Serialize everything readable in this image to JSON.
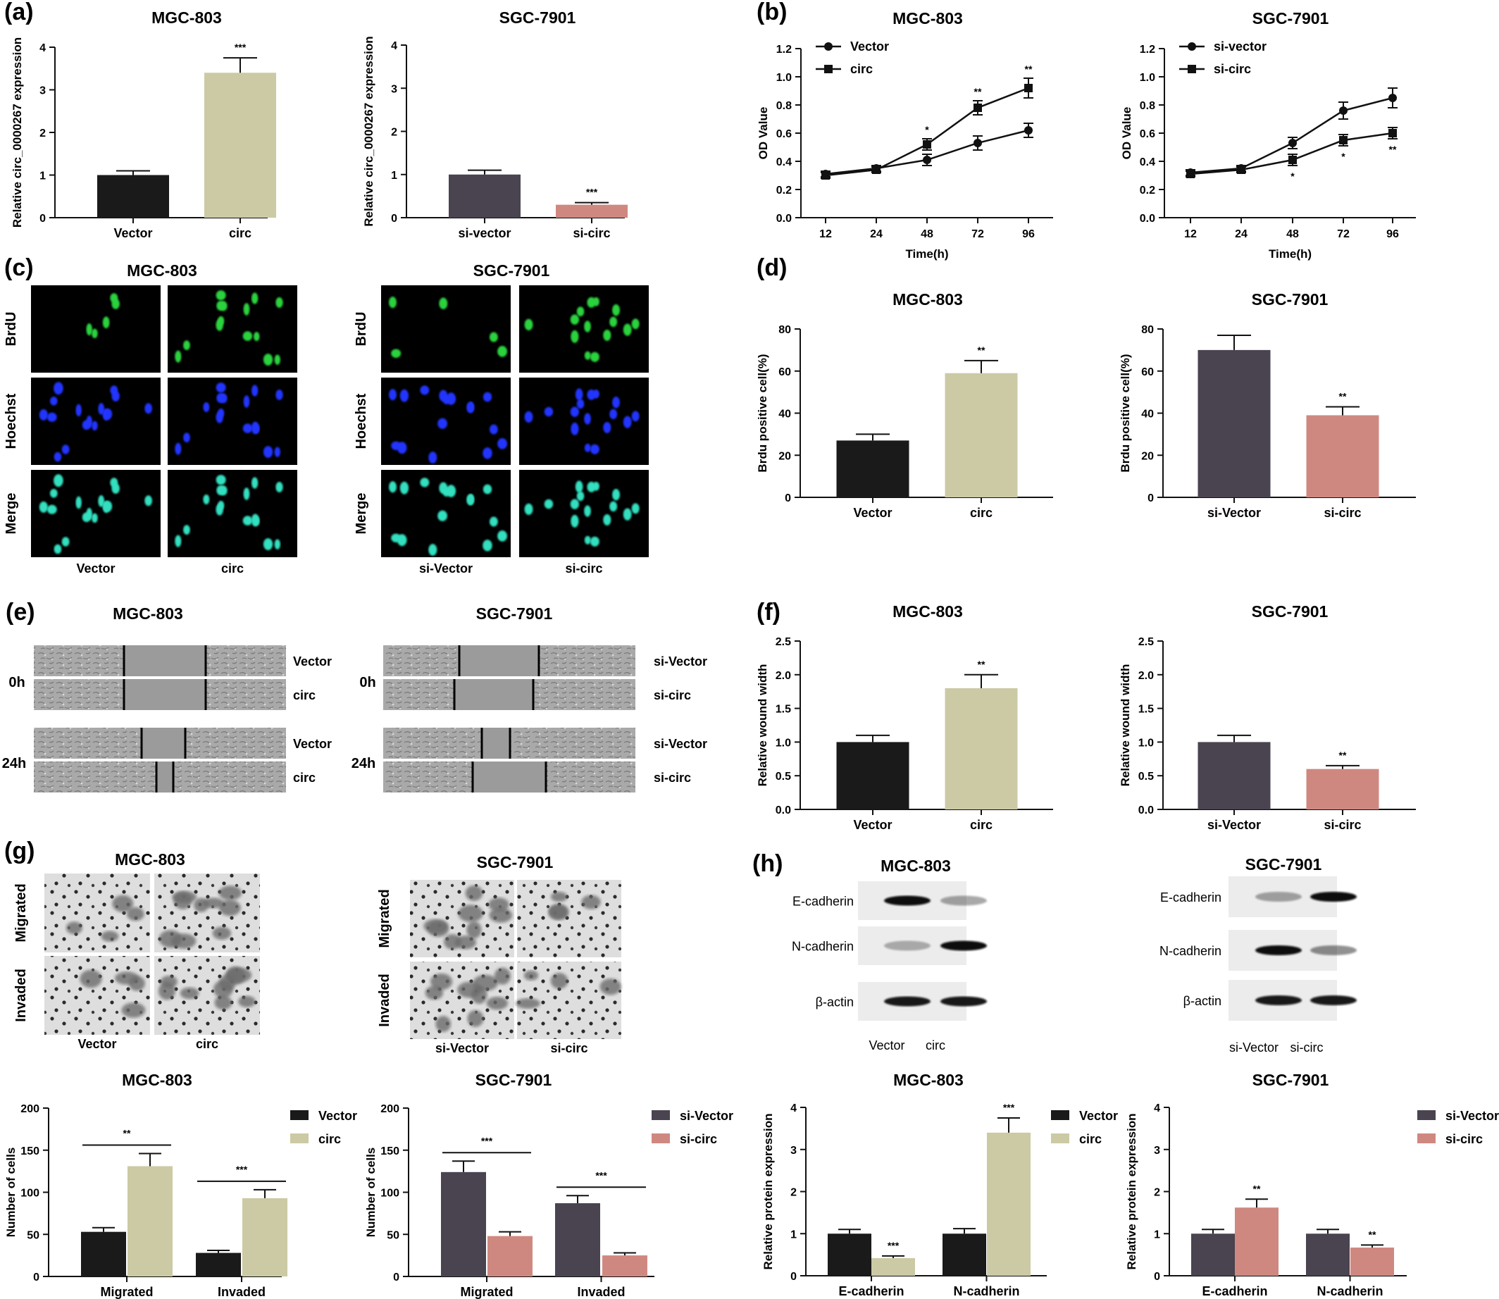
{
  "colors": {
    "black_bar": "#1a1a1a",
    "beige_bar": "#cbcaa5",
    "purple_bar": "#4a4350",
    "pink_bar": "#cf8880",
    "axis": "#111111"
  },
  "panels": {
    "a": "(a)",
    "b": "(b)",
    "c": "(c)",
    "d": "(d)",
    "e": "(e)",
    "f": "(f)",
    "g": "(g)",
    "h": "(h)"
  },
  "images": {
    "c_left_title": "MGC-803",
    "c_right_title": "SGC-7901",
    "c_rows": [
      "BrdU",
      "Hoechst",
      "Merge"
    ],
    "c_left_cols": [
      "Vector",
      "circ"
    ],
    "c_right_cols": [
      "si-Vector",
      "si-circ"
    ],
    "e_left_title": "MGC-803",
    "e_right_title": "SGC-7901",
    "e_times": [
      "0h",
      "24h"
    ],
    "e_left_labels": [
      "Vector",
      "circ",
      "Vector",
      "circ"
    ],
    "e_right_labels": [
      "si-Vector",
      "si-circ",
      "si-Vector",
      "si-circ"
    ],
    "g_left_title": "MGC-803",
    "g_right_title": "SGC-7901",
    "g_rows": [
      "Migrated",
      "Invaded"
    ],
    "g_left_cols": [
      "Vector",
      "circ"
    ],
    "g_right_cols": [
      "si-Vector",
      "si-circ"
    ],
    "h_left_title": "MGC-803",
    "h_right_title": "SGC-7901",
    "h_bands": [
      "E-cadherin",
      "N-cadherin",
      "β-actin"
    ],
    "h_left_cols": [
      "Vector",
      "circ"
    ],
    "h_right_cols": [
      "si-Vector",
      "si-circ"
    ]
  },
  "chart_data": [
    {
      "id": "a1",
      "type": "bar",
      "title": "MGC-803",
      "ylabel": "Relative circ_0000267  expression",
      "categories": [
        "Vector",
        "circ"
      ],
      "values": [
        1.0,
        3.4
      ],
      "errors": [
        0.1,
        0.35
      ],
      "colors": [
        "#1a1a1a",
        "#cbcaa5"
      ],
      "sig": [
        "",
        "***"
      ],
      "ylim": [
        0,
        4
      ],
      "yticks": [
        "0",
        "1",
        "2",
        "3",
        "4"
      ],
      "ytick_values": [
        0,
        1,
        2,
        3,
        4
      ]
    },
    {
      "id": "a2",
      "type": "bar",
      "title": "SGC-7901",
      "ylabel": "Relative circ_0000267  expression",
      "categories": [
        "si-vector",
        "si-circ"
      ],
      "values": [
        1.0,
        0.3
      ],
      "errors": [
        0.1,
        0.05
      ],
      "colors": [
        "#4a4350",
        "#cf8880"
      ],
      "sig": [
        "",
        "***"
      ],
      "ylim": [
        0,
        4
      ],
      "yticks": [
        "0",
        "1",
        "2",
        "3",
        "4"
      ],
      "ytick_values": [
        0,
        1,
        2,
        3,
        4
      ]
    },
    {
      "id": "b1",
      "type": "line",
      "title": "MGC-803",
      "xlabel": "Time(h)",
      "ylabel": "OD Value",
      "x": [
        "12",
        "24",
        "48",
        "72",
        "96"
      ],
      "series": [
        {
          "name": "Vector",
          "marker": "circle",
          "values": [
            0.31,
            0.35,
            0.41,
            0.53,
            0.62
          ],
          "errors": [
            0.02,
            0.02,
            0.04,
            0.05,
            0.05
          ]
        },
        {
          "name": "circ",
          "marker": "square",
          "values": [
            0.3,
            0.34,
            0.52,
            0.78,
            0.92
          ],
          "errors": [
            0.02,
            0.02,
            0.04,
            0.05,
            0.07
          ]
        }
      ],
      "sig_series": 1,
      "sig": [
        "",
        "",
        "*",
        "**",
        "**"
      ],
      "sig_pos": "above",
      "ylim": [
        0,
        1.2
      ],
      "yticks": [
        "0.0",
        "0.2",
        "0.4",
        "0.6",
        "0.8",
        "1.0",
        "1.2"
      ],
      "ytick_values": [
        0,
        0.2,
        0.4,
        0.6,
        0.8,
        1.0,
        1.2
      ]
    },
    {
      "id": "b2",
      "type": "line",
      "title": "SGC-7901",
      "xlabel": "Time(h)",
      "ylabel": "OD Value",
      "x": [
        "12",
        "24",
        "48",
        "72",
        "96"
      ],
      "series": [
        {
          "name": "si-vector",
          "marker": "circle",
          "values": [
            0.32,
            0.35,
            0.53,
            0.76,
            0.85
          ],
          "errors": [
            0.02,
            0.02,
            0.04,
            0.06,
            0.07
          ]
        },
        {
          "name": "si-circ",
          "marker": "square",
          "values": [
            0.31,
            0.34,
            0.41,
            0.55,
            0.6
          ],
          "errors": [
            0.02,
            0.02,
            0.04,
            0.04,
            0.04
          ]
        }
      ],
      "sig_series": 1,
      "sig": [
        "",
        "",
        "*",
        "*",
        "**"
      ],
      "sig_pos": "below",
      "ylim": [
        0,
        1.2
      ],
      "yticks": [
        "0.0",
        "0.2",
        "0.4",
        "0.6",
        "0.8",
        "1.0",
        "1.2"
      ],
      "ytick_values": [
        0,
        0.2,
        0.4,
        0.6,
        0.8,
        1.0,
        1.2
      ]
    },
    {
      "id": "d1",
      "type": "bar",
      "title": "MGC-803",
      "ylabel": "Brdu positive cell(%)",
      "categories": [
        "Vector",
        "circ"
      ],
      "values": [
        27,
        59
      ],
      "errors": [
        3,
        6
      ],
      "colors": [
        "#1a1a1a",
        "#cbcaa5"
      ],
      "sig": [
        "",
        "**"
      ],
      "ylim": [
        0,
        80
      ],
      "yticks": [
        "0",
        "20",
        "40",
        "60",
        "80"
      ],
      "ytick_values": [
        0,
        20,
        40,
        60,
        80
      ]
    },
    {
      "id": "d2",
      "type": "bar",
      "title": "SGC-7901",
      "ylabel": "Brdu positive cell(%)",
      "categories": [
        "si-Vector",
        "si-circ"
      ],
      "values": [
        70,
        39
      ],
      "errors": [
        7,
        4
      ],
      "colors": [
        "#4a4350",
        "#cf8880"
      ],
      "sig": [
        "",
        "**"
      ],
      "ylim": [
        0,
        80
      ],
      "yticks": [
        "0",
        "20",
        "40",
        "60",
        "80"
      ],
      "ytick_values": [
        0,
        20,
        40,
        60,
        80
      ]
    },
    {
      "id": "f1",
      "type": "bar",
      "title": "MGC-803",
      "ylabel": "Relative wound width",
      "categories": [
        "Vector",
        "circ"
      ],
      "values": [
        1.0,
        1.8
      ],
      "errors": [
        0.1,
        0.2
      ],
      "colors": [
        "#1a1a1a",
        "#cbcaa5"
      ],
      "sig": [
        "",
        "**"
      ],
      "ylim": [
        0,
        2.5
      ],
      "yticks": [
        "0.0",
        "0.5",
        "1.0",
        "1.5",
        "2.0",
        "2.5"
      ],
      "ytick_values": [
        0,
        0.5,
        1.0,
        1.5,
        2.0,
        2.5
      ]
    },
    {
      "id": "f2",
      "type": "bar",
      "title": "SGC-7901",
      "ylabel": "Relative wound width",
      "categories": [
        "si-Vector",
        "si-circ"
      ],
      "values": [
        1.0,
        0.6
      ],
      "errors": [
        0.1,
        0.05
      ],
      "colors": [
        "#4a4350",
        "#cf8880"
      ],
      "sig": [
        "",
        "**"
      ],
      "ylim": [
        0,
        2.5
      ],
      "yticks": [
        "0.0",
        "0.5",
        "1.0",
        "1.5",
        "2.0",
        "2.5"
      ],
      "ytick_values": [
        0,
        0.5,
        1.0,
        1.5,
        2.0,
        2.5
      ]
    },
    {
      "id": "g1",
      "type": "bar",
      "title": "MGC-803",
      "ylabel": "Number of cells",
      "categories": [
        "Migrated",
        "Invaded"
      ],
      "series": [
        {
          "name": "Vector",
          "color": "#1a1a1a",
          "values": [
            53,
            28
          ],
          "errors": [
            5,
            3
          ]
        },
        {
          "name": "circ",
          "color": "#cbcaa5",
          "values": [
            131,
            93
          ],
          "errors": [
            15,
            10
          ]
        }
      ],
      "sig": [
        "**",
        "***"
      ],
      "bracket": true,
      "ylim": [
        0,
        200
      ],
      "yticks": [
        "0",
        "50",
        "100",
        "150",
        "200"
      ],
      "ytick_values": [
        0,
        50,
        100,
        150,
        200
      ]
    },
    {
      "id": "g2",
      "type": "bar",
      "title": "SGC-7901",
      "ylabel": "Number of cells",
      "categories": [
        "Migrated",
        "Invaded"
      ],
      "series": [
        {
          "name": "si-Vector",
          "color": "#4a4350",
          "values": [
            124,
            87
          ],
          "errors": [
            13,
            9
          ]
        },
        {
          "name": "si-circ",
          "color": "#cf8880",
          "values": [
            48,
            25
          ],
          "errors": [
            5,
            3
          ]
        }
      ],
      "sig": [
        "***",
        "***"
      ],
      "bracket": true,
      "ylim": [
        0,
        200
      ],
      "yticks": [
        "0",
        "50",
        "100",
        "150",
        "200"
      ],
      "ytick_values": [
        0,
        50,
        100,
        150,
        200
      ]
    },
    {
      "id": "h1",
      "type": "bar",
      "title": "MGC-803",
      "ylabel": "Relative protein expression",
      "categories": [
        "E-cadherin",
        "N-cadherin"
      ],
      "series": [
        {
          "name": "Vector",
          "color": "#1a1a1a",
          "values": [
            1.0,
            1.0
          ],
          "errors": [
            0.1,
            0.12
          ]
        },
        {
          "name": "circ",
          "color": "#cbcaa5",
          "values": [
            0.42,
            3.4
          ],
          "errors": [
            0.05,
            0.35
          ]
        }
      ],
      "sig": [
        "***",
        "***"
      ],
      "bracket": false,
      "ylim": [
        0,
        4
      ],
      "yticks": [
        "0",
        "1",
        "2",
        "3",
        "4"
      ],
      "ytick_values": [
        0,
        1,
        2,
        3,
        4
      ]
    },
    {
      "id": "h2",
      "type": "bar",
      "title": "SGC-7901",
      "ylabel": "Relative protein expression",
      "categories": [
        "E-cadherin",
        "N-cadherin"
      ],
      "series": [
        {
          "name": "si-Vector",
          "color": "#4a4350",
          "values": [
            1.0,
            1.0
          ],
          "errors": [
            0.1,
            0.1
          ]
        },
        {
          "name": "si-circ",
          "color": "#cf8880",
          "values": [
            1.62,
            0.67
          ],
          "errors": [
            0.2,
            0.06
          ]
        }
      ],
      "sig": [
        "**",
        "**"
      ],
      "bracket": false,
      "ylim": [
        0,
        4
      ],
      "yticks": [
        "0",
        "1",
        "2",
        "3",
        "4"
      ],
      "ytick_values": [
        0,
        1,
        2,
        3,
        4
      ]
    }
  ]
}
